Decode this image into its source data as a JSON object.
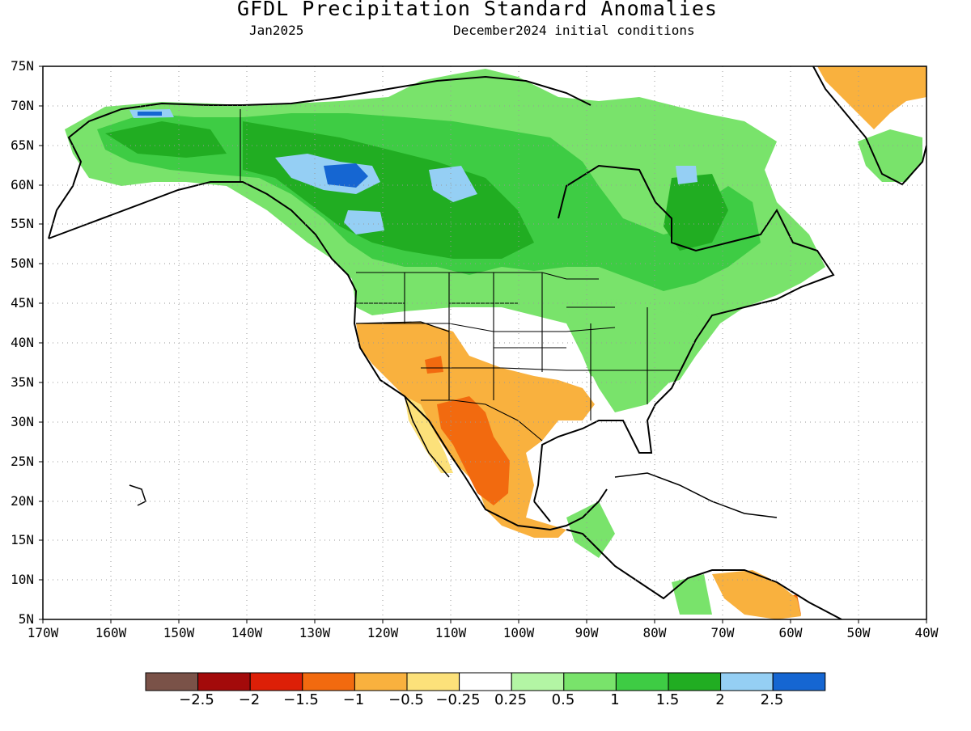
{
  "title": "GFDL Precipitation Standard Anomalies",
  "subtitle_left": "Jan2025",
  "subtitle_right": "December2024 initial conditions",
  "lat_labels": [
    "75N",
    "70N",
    "65N",
    "60N",
    "55N",
    "50N",
    "45N",
    "40N",
    "35N",
    "30N",
    "25N",
    "20N",
    "15N",
    "10N",
    "5N"
  ],
  "lon_labels": [
    "170W",
    "160W",
    "150W",
    "140W",
    "130W",
    "120W",
    "110W",
    "100W",
    "90W",
    "80W",
    "70W",
    "60W",
    "50W",
    "40W"
  ],
  "colorbar": {
    "colors": [
      "#7a5248",
      "#a30a0a",
      "#dd1f07",
      "#f26a0f",
      "#f9b13e",
      "#fce17a",
      "#ffffff",
      "#b3f5a4",
      "#79e36b",
      "#3ecc44",
      "#21ad22",
      "#95cff4",
      "#1566d2"
    ],
    "labels": [
      "-2.5",
      "-2",
      "-1.5",
      "-1",
      "-0.5",
      "-0.25",
      "0.25",
      "0.5",
      "1",
      "1.5",
      "2",
      "2.5"
    ]
  },
  "map": {
    "lat_range": [
      5,
      75
    ],
    "lon_range": [
      -170,
      -40
    ],
    "regions": [
      {
        "name": "alaska-yukon-wet",
        "color": "#79e36b"
      },
      {
        "name": "canada-wet",
        "color": "#3ecc44"
      },
      {
        "name": "canada-very-wet",
        "color": "#21ad22"
      },
      {
        "name": "northwest-territories-anomaly",
        "color": "#95cff4"
      },
      {
        "name": "northwest-territories-peak",
        "color": "#1566d2"
      },
      {
        "name": "southwest-us-dry",
        "color": "#f9b13e"
      },
      {
        "name": "mexico-very-dry",
        "color": "#f26a0f"
      },
      {
        "name": "greenland-dry",
        "color": "#f9b13e"
      },
      {
        "name": "venezuela-dry",
        "color": "#f9b13e"
      },
      {
        "name": "eastern-us-wet",
        "color": "#79e36b"
      }
    ]
  }
}
